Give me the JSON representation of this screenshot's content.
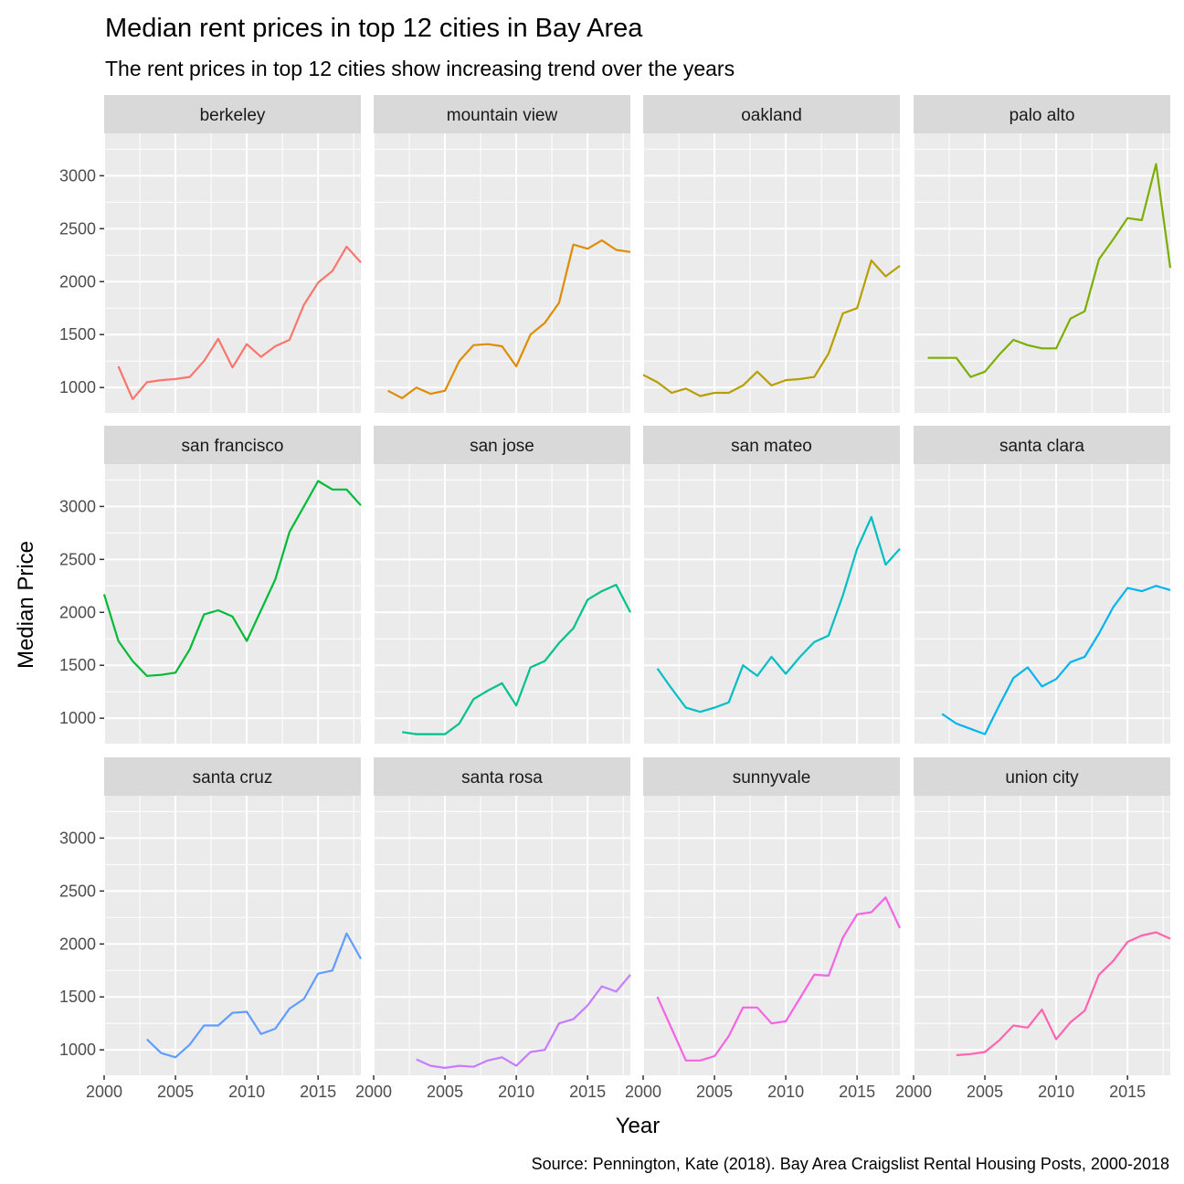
{
  "chart_data": {
    "type": "line",
    "title": "Median rent prices in top 12 cities in Bay Area",
    "subtitle": "The rent prices in top 12 cities show increasing trend over the years",
    "xlabel": "Year",
    "ylabel": "Median Price",
    "caption": "Source: Pennington, Kate (2018). Bay Area Craigslist Rental Housing Posts, 2000-2018",
    "xlim": [
      2000,
      2018
    ],
    "ylim": [
      760,
      3400
    ],
    "x_ticks": [
      2000,
      2005,
      2010,
      2015
    ],
    "y_ticks": [
      1000,
      1500,
      2000,
      2500,
      3000
    ],
    "grid": true,
    "legend": "none",
    "layout": "facet_wrap 3 rows x 4 columns",
    "panels": [
      {
        "name": "berkeley",
        "color": "#F8766D",
        "x": [
          2001,
          2002,
          2003,
          2004,
          2005,
          2006,
          2007,
          2008,
          2009,
          2010,
          2011,
          2012,
          2013,
          2014,
          2015,
          2016,
          2017,
          2018
        ],
        "y": [
          1200,
          890,
          1050,
          1070,
          1080,
          1100,
          1250,
          1460,
          1190,
          1410,
          1290,
          1390,
          1450,
          1780,
          1990,
          2100,
          2330,
          2180
        ]
      },
      {
        "name": "mountain view",
        "color": "#DE8C00",
        "x": [
          2001,
          2002,
          2003,
          2004,
          2005,
          2006,
          2007,
          2008,
          2009,
          2010,
          2011,
          2012,
          2013,
          2014,
          2015,
          2016,
          2017,
          2018
        ],
        "y": [
          970,
          900,
          1000,
          940,
          970,
          1250,
          1400,
          1410,
          1390,
          1200,
          1500,
          1610,
          1800,
          2350,
          2310,
          2390,
          2300,
          2280
        ]
      },
      {
        "name": "oakland",
        "color": "#B79F00",
        "x": [
          2000,
          2001,
          2002,
          2003,
          2004,
          2005,
          2006,
          2007,
          2008,
          2009,
          2010,
          2011,
          2012,
          2013,
          2014,
          2015,
          2016,
          2017,
          2018
        ],
        "y": [
          1120,
          1050,
          950,
          990,
          920,
          950,
          950,
          1020,
          1150,
          1020,
          1070,
          1080,
          1100,
          1320,
          1700,
          1750,
          2200,
          2050,
          2150
        ]
      },
      {
        "name": "palo alto",
        "color": "#7CAE00",
        "x": [
          2001,
          2002,
          2003,
          2004,
          2005,
          2006,
          2007,
          2008,
          2009,
          2010,
          2011,
          2012,
          2013,
          2014,
          2015,
          2016,
          2017,
          2018
        ],
        "y": [
          1280,
          1280,
          1280,
          1100,
          1150,
          1310,
          1450,
          1400,
          1370,
          1370,
          1650,
          1720,
          2210,
          2400,
          2600,
          2580,
          3110,
          2130
        ]
      },
      {
        "name": "san francisco",
        "color": "#00BA38",
        "x": [
          2000,
          2001,
          2002,
          2003,
          2004,
          2005,
          2006,
          2007,
          2008,
          2009,
          2010,
          2011,
          2012,
          2013,
          2014,
          2015,
          2016,
          2017,
          2018
        ],
        "y": [
          2170,
          1730,
          1540,
          1400,
          1410,
          1430,
          1650,
          1980,
          2020,
          1960,
          1730,
          2020,
          2310,
          2760,
          3000,
          3240,
          3160,
          3160,
          3010
        ]
      },
      {
        "name": "san jose",
        "color": "#00C08B",
        "x": [
          2002,
          2003,
          2004,
          2005,
          2006,
          2007,
          2008,
          2009,
          2010,
          2011,
          2012,
          2013,
          2014,
          2015,
          2016,
          2017,
          2018
        ],
        "y": [
          870,
          850,
          850,
          850,
          950,
          1180,
          1260,
          1330,
          1120,
          1480,
          1540,
          1710,
          1850,
          2120,
          2200,
          2260,
          2000
        ]
      },
      {
        "name": "san mateo",
        "color": "#00BFC4",
        "x": [
          2001,
          2002,
          2003,
          2004,
          2005,
          2006,
          2007,
          2008,
          2009,
          2010,
          2011,
          2012,
          2013,
          2014,
          2015,
          2016,
          2017,
          2018
        ],
        "y": [
          1470,
          1280,
          1100,
          1060,
          1100,
          1150,
          1500,
          1400,
          1580,
          1420,
          1580,
          1720,
          1780,
          2160,
          2600,
          2900,
          2450,
          2600
        ]
      },
      {
        "name": "santa clara",
        "color": "#00B4F0",
        "x": [
          2002,
          2003,
          2004,
          2005,
          2006,
          2007,
          2008,
          2009,
          2010,
          2011,
          2012,
          2013,
          2014,
          2015,
          2016,
          2017,
          2018
        ],
        "y": [
          1040,
          950,
          900,
          850,
          1120,
          1380,
          1480,
          1300,
          1370,
          1530,
          1580,
          1800,
          2050,
          2230,
          2200,
          2250,
          2210
        ]
      },
      {
        "name": "santa cruz",
        "color": "#619CFF",
        "x": [
          2003,
          2004,
          2005,
          2006,
          2007,
          2008,
          2009,
          2010,
          2011,
          2012,
          2013,
          2014,
          2015,
          2016,
          2017,
          2018
        ],
        "y": [
          1100,
          970,
          930,
          1050,
          1230,
          1230,
          1350,
          1360,
          1150,
          1200,
          1390,
          1480,
          1720,
          1750,
          2100,
          1860
        ]
      },
      {
        "name": "santa rosa",
        "color": "#C77CFF",
        "x": [
          2003,
          2004,
          2005,
          2006,
          2007,
          2008,
          2009,
          2010,
          2011,
          2012,
          2013,
          2014,
          2015,
          2016,
          2017,
          2018
        ],
        "y": [
          910,
          850,
          830,
          850,
          840,
          900,
          930,
          850,
          980,
          1000,
          1250,
          1290,
          1420,
          1600,
          1550,
          1710
        ]
      },
      {
        "name": "sunnyvale",
        "color": "#F564E3",
        "x": [
          2001,
          2002,
          2003,
          2004,
          2005,
          2006,
          2007,
          2008,
          2009,
          2010,
          2011,
          2012,
          2013,
          2014,
          2015,
          2016,
          2017,
          2018
        ],
        "y": [
          1500,
          1200,
          900,
          900,
          940,
          1130,
          1400,
          1400,
          1250,
          1270,
          1490,
          1710,
          1700,
          2060,
          2280,
          2300,
          2440,
          2150
        ]
      },
      {
        "name": "union city",
        "color": "#FF64B0",
        "x": [
          2003,
          2004,
          2005,
          2006,
          2007,
          2008,
          2009,
          2010,
          2011,
          2012,
          2013,
          2014,
          2015,
          2016,
          2017,
          2018
        ],
        "y": [
          950,
          960,
          980,
          1090,
          1230,
          1210,
          1380,
          1100,
          1260,
          1370,
          1710,
          1840,
          2020,
          2080,
          2110,
          2050
        ]
      }
    ]
  }
}
